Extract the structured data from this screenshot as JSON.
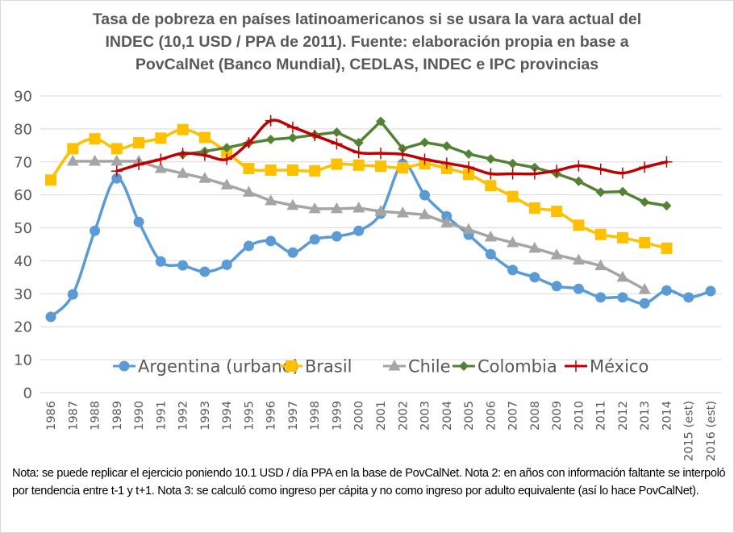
{
  "chart_data": {
    "type": "line",
    "title_lines": [
      "Tasa de pobreza en países latinoamericanos si se usara la vara actual del",
      "INDEC (10,1 USD / PPA de 2011). Fuente: elaboración propia en base a",
      "PovCalNet (Banco Mundial), CEDLAS, INDEC e IPC provincias"
    ],
    "xlabel": "",
    "ylabel": "",
    "ylim": [
      0,
      90
    ],
    "yticks": [
      0,
      10,
      20,
      30,
      40,
      50,
      60,
      70,
      80,
      90
    ],
    "grid": true,
    "legend_position": "inside-bottom-center",
    "categories": [
      "1986",
      "1987",
      "1988",
      "1989",
      "1990",
      "1991",
      "1992",
      "1993",
      "1994",
      "1995",
      "1996",
      "1997",
      "1998",
      "1999",
      "2000",
      "2001",
      "2002",
      "2003",
      "2004",
      "2005",
      "2006",
      "2007",
      "2008",
      "2009",
      "2010",
      "2011",
      "2012",
      "2013",
      "2014",
      "2015 (est)",
      "2016 (est)"
    ],
    "series": [
      {
        "name": "Argentina (urbano)",
        "color": "#5b9bd5",
        "marker": "circle",
        "smooth": true,
        "values": [
          23.0,
          29.8,
          49.1,
          65.0,
          51.8,
          39.8,
          38.6,
          36.7,
          38.8,
          44.5,
          46.0,
          42.5,
          46.5,
          47.4,
          49.1,
          54.3,
          69.4,
          59.9,
          53.5,
          47.9,
          42.0,
          37.2,
          35.0,
          32.3,
          31.5,
          28.9,
          28.9,
          27.1,
          31.0,
          28.9,
          30.8
        ]
      },
      {
        "name": "Brasil",
        "color": "#ffc000",
        "marker": "square",
        "smooth": true,
        "values": [
          64.5,
          74.0,
          77.0,
          74.0,
          75.8,
          77.2,
          79.8,
          77.4,
          73.0,
          68.0,
          67.5,
          67.5,
          67.3,
          69.3,
          69.0,
          68.7,
          68.2,
          69.4,
          68.0,
          66.2,
          62.8,
          59.5,
          56.0,
          55.0,
          50.8,
          48.0,
          47.0,
          45.5,
          43.8,
          null,
          null
        ]
      },
      {
        "name": "Chile",
        "color": "#a5a5a5",
        "marker": "triangle",
        "smooth": false,
        "values": [
          null,
          70.2,
          70.2,
          70.2,
          70.2,
          68.0,
          66.5,
          65.0,
          63.0,
          60.8,
          58.2,
          56.8,
          55.8,
          55.8,
          56.0,
          55.0,
          54.5,
          54.0,
          51.5,
          49.5,
          47.2,
          45.5,
          43.8,
          41.8,
          40.2,
          38.5,
          35.0,
          31.3,
          null,
          null,
          null
        ]
      },
      {
        "name": "Colombia",
        "color": "#548235",
        "marker": "diamond",
        "smooth": false,
        "values": [
          null,
          null,
          null,
          null,
          null,
          null,
          72.2,
          73.2,
          74.3,
          75.7,
          76.8,
          77.3,
          78.2,
          79.0,
          75.8,
          82.3,
          74.0,
          75.9,
          74.8,
          72.4,
          70.9,
          69.5,
          68.3,
          66.4,
          64.1,
          60.8,
          61.0,
          57.8,
          56.7,
          null,
          null
        ]
      },
      {
        "name": "México",
        "color": "#c00000",
        "marker": "plus",
        "smooth": true,
        "values": [
          null,
          null,
          null,
          67.2,
          69.2,
          70.8,
          72.6,
          72.0,
          70.8,
          75.8,
          82.5,
          80.5,
          78.0,
          75.5,
          72.8,
          72.6,
          72.3,
          70.8,
          69.6,
          68.4,
          66.4,
          66.4,
          66.4,
          67.4,
          68.8,
          67.8,
          66.6,
          68.4,
          70.0,
          null,
          null
        ]
      }
    ]
  },
  "note_text": "Nota: se puede replicar el ejercicio poniendo 10.1 USD / día PPA en la base de PovCalNet. Nota 2: en años con información faltante se interpoló por tendencia entre t-1 y t+1. Nota 3: se calculó como ingreso per cápita y no como ingreso por adulto equivalente (así lo hace PovCalNet)."
}
